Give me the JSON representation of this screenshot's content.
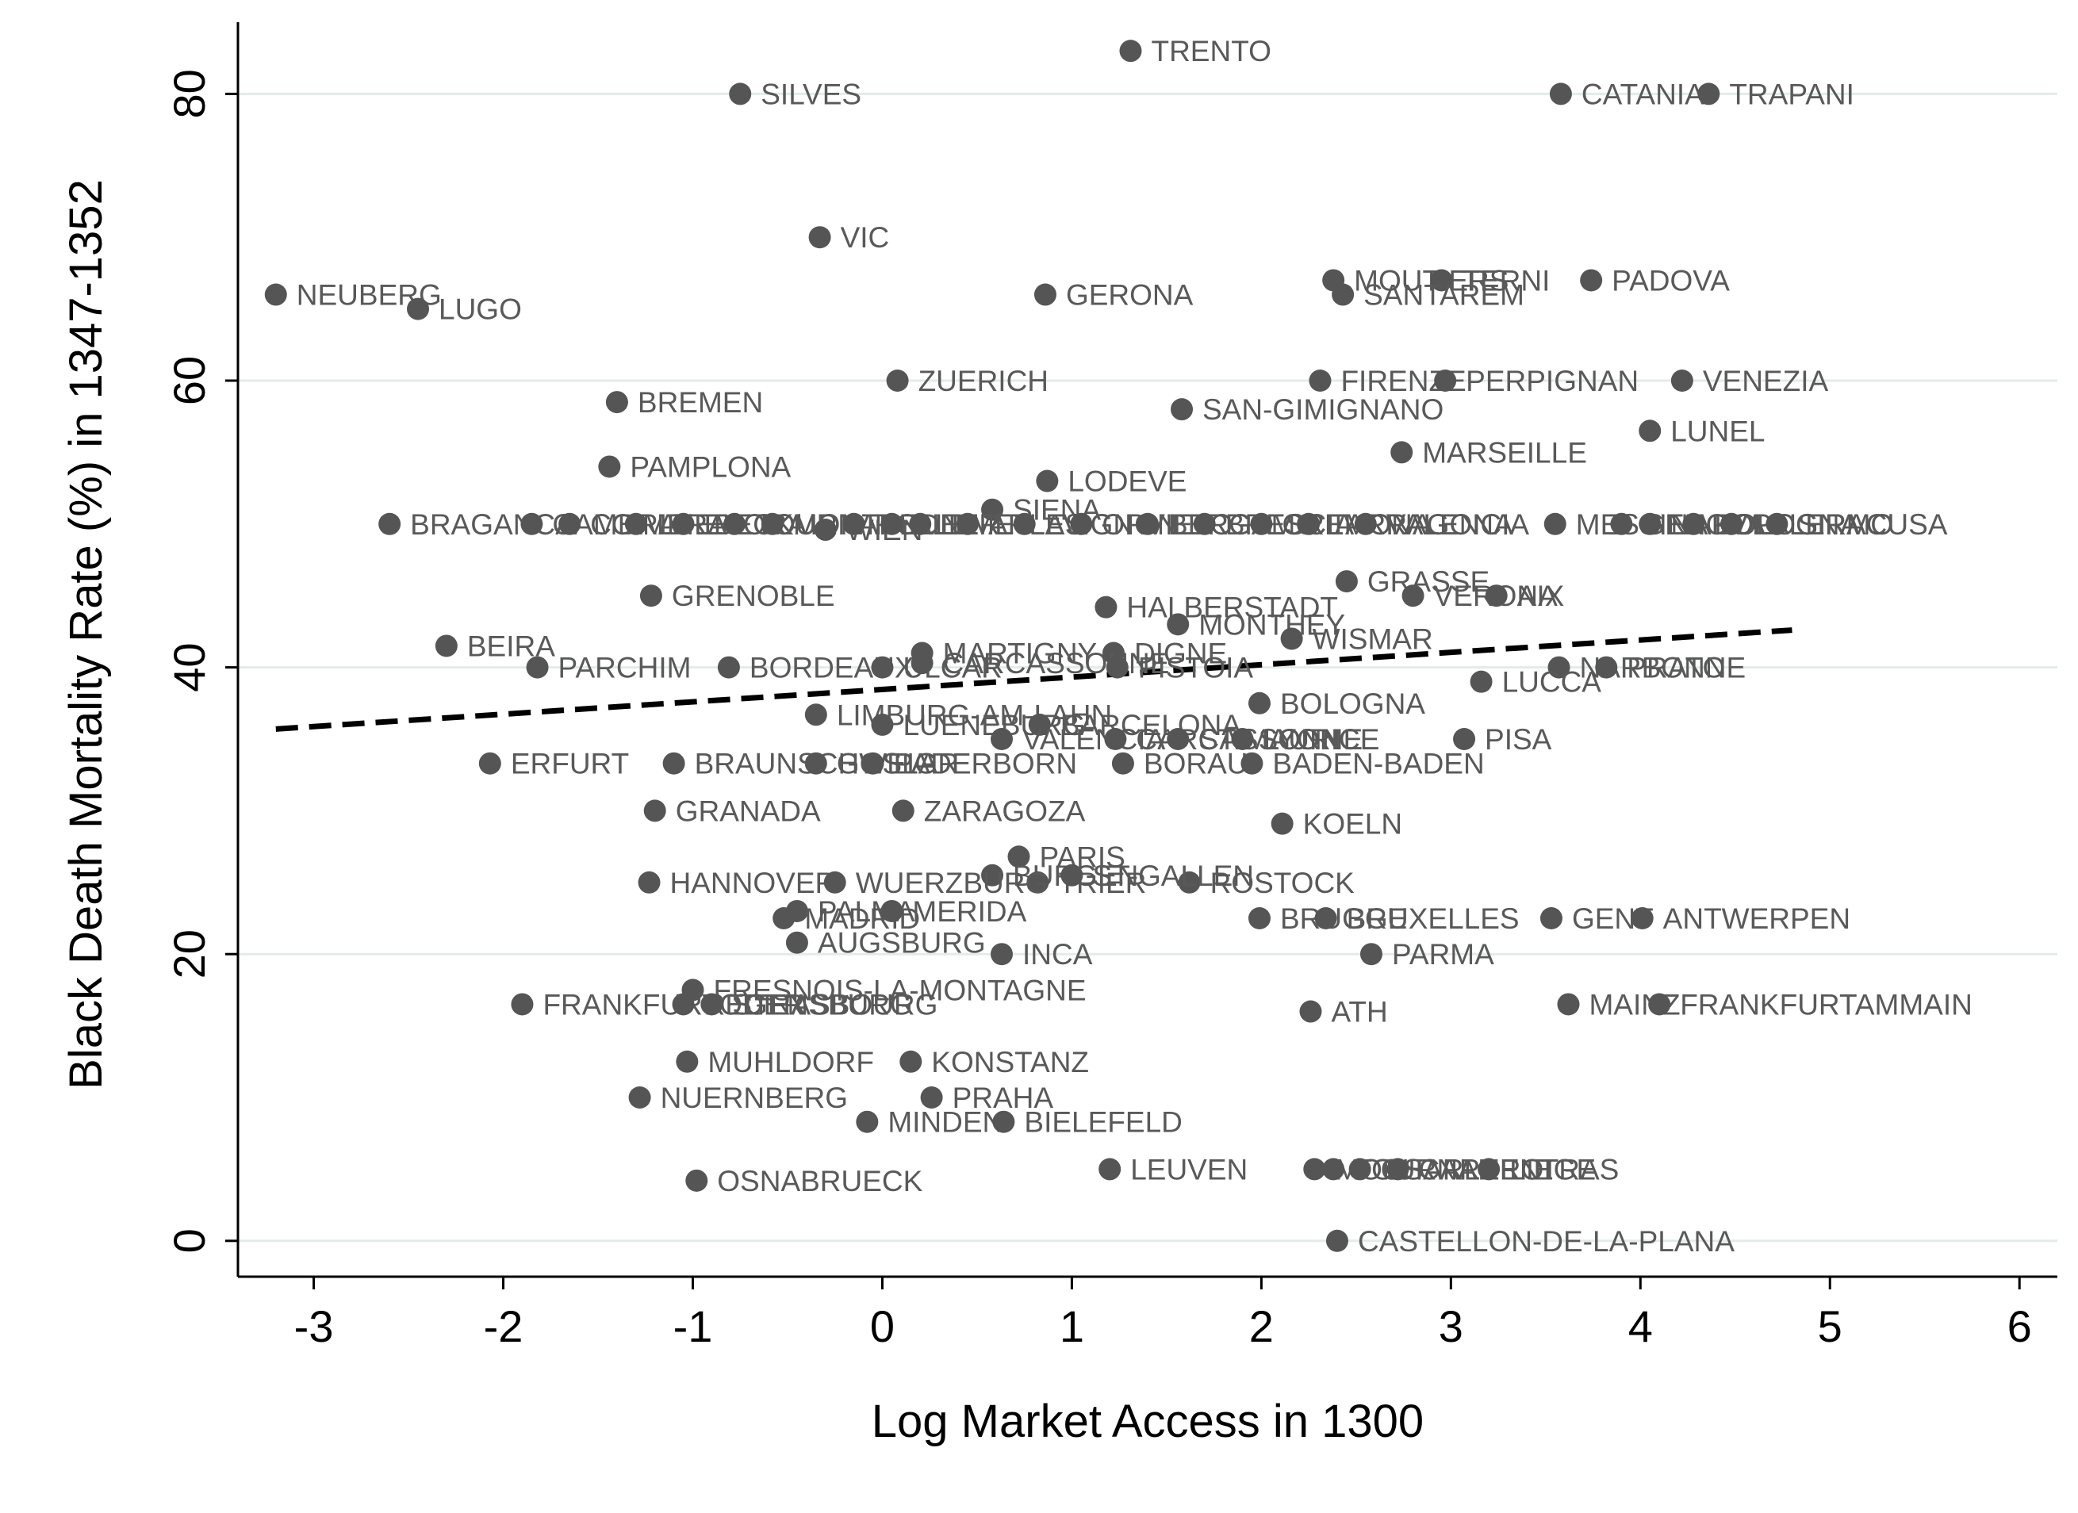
{
  "chart_data": {
    "type": "scatter",
    "xlabel": "Log Market Access in 1300",
    "ylabel": "Black Death Mortality Rate (%) in 1347-1352",
    "xlim": [
      -3.4,
      6.2
    ],
    "ylim": [
      -2.5,
      85
    ],
    "xticks": [
      -3,
      -2,
      -1,
      0,
      1,
      2,
      3,
      4,
      5,
      6
    ],
    "yticks": [
      0,
      20,
      40,
      60,
      80
    ],
    "grid": true,
    "colors": {
      "point": "#555555",
      "label": "#595959",
      "grid": "#e3ebea",
      "fit": "#000000"
    },
    "fit_line": {
      "x": [
        -3.2,
        4.8
      ],
      "y": [
        35.7,
        42.6
      ],
      "style": "dashed"
    },
    "points": [
      {
        "x": 1.31,
        "y": 83,
        "label": "TRENTO"
      },
      {
        "x": -0.75,
        "y": 80,
        "label": "SILVES"
      },
      {
        "x": 3.58,
        "y": 80,
        "label": "CATANIA"
      },
      {
        "x": 4.36,
        "y": 80,
        "label": "TRAPANI"
      },
      {
        "x": -0.33,
        "y": 70,
        "label": "VIC"
      },
      {
        "x": -3.2,
        "y": 66,
        "label": "NEUBERG"
      },
      {
        "x": -2.45,
        "y": 65,
        "label": "LUGO"
      },
      {
        "x": 0.86,
        "y": 66,
        "label": "GERONA"
      },
      {
        "x": 2.38,
        "y": 67,
        "label": "MOUTIERS"
      },
      {
        "x": 2.95,
        "y": 67,
        "label": "TERNI"
      },
      {
        "x": 2.43,
        "y": 66,
        "label": "SANTAREM"
      },
      {
        "x": 3.74,
        "y": 67,
        "label": "PADOVA"
      },
      {
        "x": 0.08,
        "y": 60,
        "label": "ZUERICH"
      },
      {
        "x": 2.31,
        "y": 60,
        "label": "FIRENZE"
      },
      {
        "x": 2.97,
        "y": 60,
        "label": "PERPIGNAN"
      },
      {
        "x": 4.22,
        "y": 60,
        "label": "VENEZIA"
      },
      {
        "x": -1.4,
        "y": 58.5,
        "label": "BREMEN"
      },
      {
        "x": 1.58,
        "y": 58,
        "label": "SAN-GIMIGNANO"
      },
      {
        "x": 4.05,
        "y": 56.5,
        "label": "LUNEL"
      },
      {
        "x": 2.74,
        "y": 55,
        "label": "MARSEILLE"
      },
      {
        "x": -1.44,
        "y": 54,
        "label": "PAMPLONA"
      },
      {
        "x": 0.87,
        "y": 53,
        "label": "LODEVE"
      },
      {
        "x": 0.58,
        "y": 51,
        "label": "SIENA"
      },
      {
        "x": -2.6,
        "y": 50,
        "label": "BRAGANCA"
      },
      {
        "x": -1.85,
        "y": 50,
        "label": "CAMBRAI"
      },
      {
        "x": -1.65,
        "y": 50,
        "label": "COIMBRA"
      },
      {
        "x": -1.3,
        "y": 50,
        "label": "LUEBECK"
      },
      {
        "x": -1.05,
        "y": 50,
        "label": "EVORA"
      },
      {
        "x": -0.78,
        "y": 50,
        "label": "TOURNAI"
      },
      {
        "x": -0.58,
        "y": 50,
        "label": "MONTPELLIER"
      },
      {
        "x": -0.3,
        "y": 49.6,
        "label": "WIEN"
      },
      {
        "x": -0.15,
        "y": 50,
        "label": "RODEZ"
      },
      {
        "x": 0.05,
        "y": 50,
        "label": "ALBI"
      },
      {
        "x": 0.2,
        "y": 50,
        "label": "NIMES"
      },
      {
        "x": 0.45,
        "y": 50,
        "label": "ARLES"
      },
      {
        "x": 0.75,
        "y": 50,
        "label": "AVIGNON"
      },
      {
        "x": 1.05,
        "y": 50,
        "label": "ORVIETO"
      },
      {
        "x": 1.4,
        "y": 50,
        "label": "BERGAMO"
      },
      {
        "x": 1.7,
        "y": 50,
        "label": "BRESCIA"
      },
      {
        "x": 2.0,
        "y": 50,
        "label": "CREMONA"
      },
      {
        "x": 2.25,
        "y": 50,
        "label": "TARRAGONA"
      },
      {
        "x": 2.55,
        "y": 50,
        "label": "VALENCIA"
      },
      {
        "x": 3.55,
        "y": 50,
        "label": "MESSINA"
      },
      {
        "x": 3.9,
        "y": 50,
        "label": "GENOVA"
      },
      {
        "x": 4.05,
        "y": 50,
        "label": "NAPOLI"
      },
      {
        "x": 4.28,
        "y": 50,
        "label": "BOLOGNA"
      },
      {
        "x": 4.48,
        "y": 50,
        "label": "PALERMO"
      },
      {
        "x": 4.72,
        "y": 50,
        "label": "SIRACUSA"
      },
      {
        "x": 2.45,
        "y": 46,
        "label": "GRASSE"
      },
      {
        "x": 2.8,
        "y": 45,
        "label": "VERONA"
      },
      {
        "x": 3.24,
        "y": 45,
        "label": "AIX"
      },
      {
        "x": -1.22,
        "y": 45,
        "label": "GRENOBLE"
      },
      {
        "x": 1.18,
        "y": 44.2,
        "label": "HALBERSTADT"
      },
      {
        "x": 1.56,
        "y": 43,
        "label": "MONTHEY"
      },
      {
        "x": 2.16,
        "y": 42,
        "label": "WISMAR"
      },
      {
        "x": -2.3,
        "y": 41.5,
        "label": "BEIRA"
      },
      {
        "x": 0.21,
        "y": 41,
        "label": "MARTIGNY"
      },
      {
        "x": 1.22,
        "y": 41,
        "label": "DIGNE"
      },
      {
        "x": -1.82,
        "y": 40,
        "label": "PARCHIM"
      },
      {
        "x": -0.81,
        "y": 40,
        "label": "BORDEAUX"
      },
      {
        "x": 0.0,
        "y": 40,
        "label": "ULCAR"
      },
      {
        "x": 0.21,
        "y": 40.3,
        "label": "CARCASSONNE"
      },
      {
        "x": 1.24,
        "y": 40,
        "label": "PISTOIA"
      },
      {
        "x": 3.57,
        "y": 40,
        "label": "NARBONNE"
      },
      {
        "x": 3.82,
        "y": 40,
        "label": "PRATO"
      },
      {
        "x": 3.16,
        "y": 39,
        "label": "LUCCA"
      },
      {
        "x": 1.99,
        "y": 37.5,
        "label": "BOLOGNA"
      },
      {
        "x": -0.35,
        "y": 36.7,
        "label": "LIMBURG-AM-LAHN"
      },
      {
        "x": 0.0,
        "y": 36,
        "label": "LUENEBURG"
      },
      {
        "x": 0.83,
        "y": 36,
        "label": "BARCELONA"
      },
      {
        "x": 0.63,
        "y": 35,
        "label": "VALENCIA"
      },
      {
        "x": 1.23,
        "y": 35,
        "label": "CARCASSONNE"
      },
      {
        "x": 1.56,
        "y": 35,
        "label": "ST-MAURICE"
      },
      {
        "x": 1.9,
        "y": 35,
        "label": "LYON"
      },
      {
        "x": 3.07,
        "y": 35,
        "label": "PISA"
      },
      {
        "x": -2.07,
        "y": 33.3,
        "label": "ERFURT"
      },
      {
        "x": -1.1,
        "y": 33.3,
        "label": "BRAUNSCHWEIG"
      },
      {
        "x": -0.35,
        "y": 33.3,
        "label": "GOSLAR"
      },
      {
        "x": -0.05,
        "y": 33.3,
        "label": "PADERBORN"
      },
      {
        "x": 1.27,
        "y": 33.3,
        "label": "BORAU"
      },
      {
        "x": 1.95,
        "y": 33.3,
        "label": "BADEN-BADEN"
      },
      {
        "x": -1.2,
        "y": 30,
        "label": "GRANADA"
      },
      {
        "x": 0.11,
        "y": 30,
        "label": "ZARAGOZA"
      },
      {
        "x": 2.11,
        "y": 29.1,
        "label": "KOELN"
      },
      {
        "x": 0.72,
        "y": 26.8,
        "label": "PARIS"
      },
      {
        "x": 0.58,
        "y": 25.5,
        "label": "BURGEN"
      },
      {
        "x": 0.82,
        "y": 25,
        "label": "TRIER"
      },
      {
        "x": 1.62,
        "y": 25,
        "label": "ROSTOCK"
      },
      {
        "x": -1.23,
        "y": 25,
        "label": "HANNOVER"
      },
      {
        "x": -0.25,
        "y": 25,
        "label": "WUERZBURG"
      },
      {
        "x": 1.0,
        "y": 25.5,
        "label": "ST-GALLEN"
      },
      {
        "x": -0.45,
        "y": 23,
        "label": "PALMA"
      },
      {
        "x": -0.52,
        "y": 22.5,
        "label": "MADRID"
      },
      {
        "x": 0.05,
        "y": 23,
        "label": "MERIDA"
      },
      {
        "x": 1.99,
        "y": 22.5,
        "label": "BRUGGE"
      },
      {
        "x": 2.34,
        "y": 22.5,
        "label": "BRUXELLES"
      },
      {
        "x": 3.53,
        "y": 22.5,
        "label": "GENT"
      },
      {
        "x": 4.01,
        "y": 22.5,
        "label": "ANTWERPEN"
      },
      {
        "x": -0.45,
        "y": 20.8,
        "label": "AUGSBURG"
      },
      {
        "x": 0.63,
        "y": 20,
        "label": "INCA"
      },
      {
        "x": 2.58,
        "y": 20,
        "label": "PARMA"
      },
      {
        "x": -1.9,
        "y": 16.5,
        "label": "FRANKFURTODER"
      },
      {
        "x": -1.0,
        "y": 17.5,
        "label": "FRESNOIS-LA-MONTAGNE"
      },
      {
        "x": -1.05,
        "y": 16.5,
        "label": "REGENSBURG"
      },
      {
        "x": -0.9,
        "y": 16.5,
        "label": "STRASBOURG"
      },
      {
        "x": 2.26,
        "y": 16,
        "label": "ATH"
      },
      {
        "x": 3.62,
        "y": 16.5,
        "label": "MAINZ"
      },
      {
        "x": 4.1,
        "y": 16.5,
        "label": "FRANKFURTAMMAIN"
      },
      {
        "x": -1.03,
        "y": 12.5,
        "label": "MUHLDORF"
      },
      {
        "x": 0.15,
        "y": 12.5,
        "label": "KONSTANZ"
      },
      {
        "x": -1.28,
        "y": 10,
        "label": "NUERNBERG"
      },
      {
        "x": 0.26,
        "y": 10,
        "label": "PRAHA"
      },
      {
        "x": -0.08,
        "y": 8.3,
        "label": "MINDEN"
      },
      {
        "x": 0.64,
        "y": 8.3,
        "label": "BIELEFELD"
      },
      {
        "x": -0.98,
        "y": 4.2,
        "label": "OSNABRUECK"
      },
      {
        "x": 1.2,
        "y": 5,
        "label": "LEUVEN"
      },
      {
        "x": 2.28,
        "y": 5,
        "label": "MONS"
      },
      {
        "x": 2.38,
        "y": 5,
        "label": "TOURNAI"
      },
      {
        "x": 2.52,
        "y": 5,
        "label": "CHARLEROI"
      },
      {
        "x": 2.72,
        "y": 5,
        "label": "CARPENTRAS"
      },
      {
        "x": 3.2,
        "y": 5,
        "label": "LIEGE"
      },
      {
        "x": 2.4,
        "y": 0,
        "label": "CASTELLON-DE-LA-PLANA"
      }
    ]
  }
}
